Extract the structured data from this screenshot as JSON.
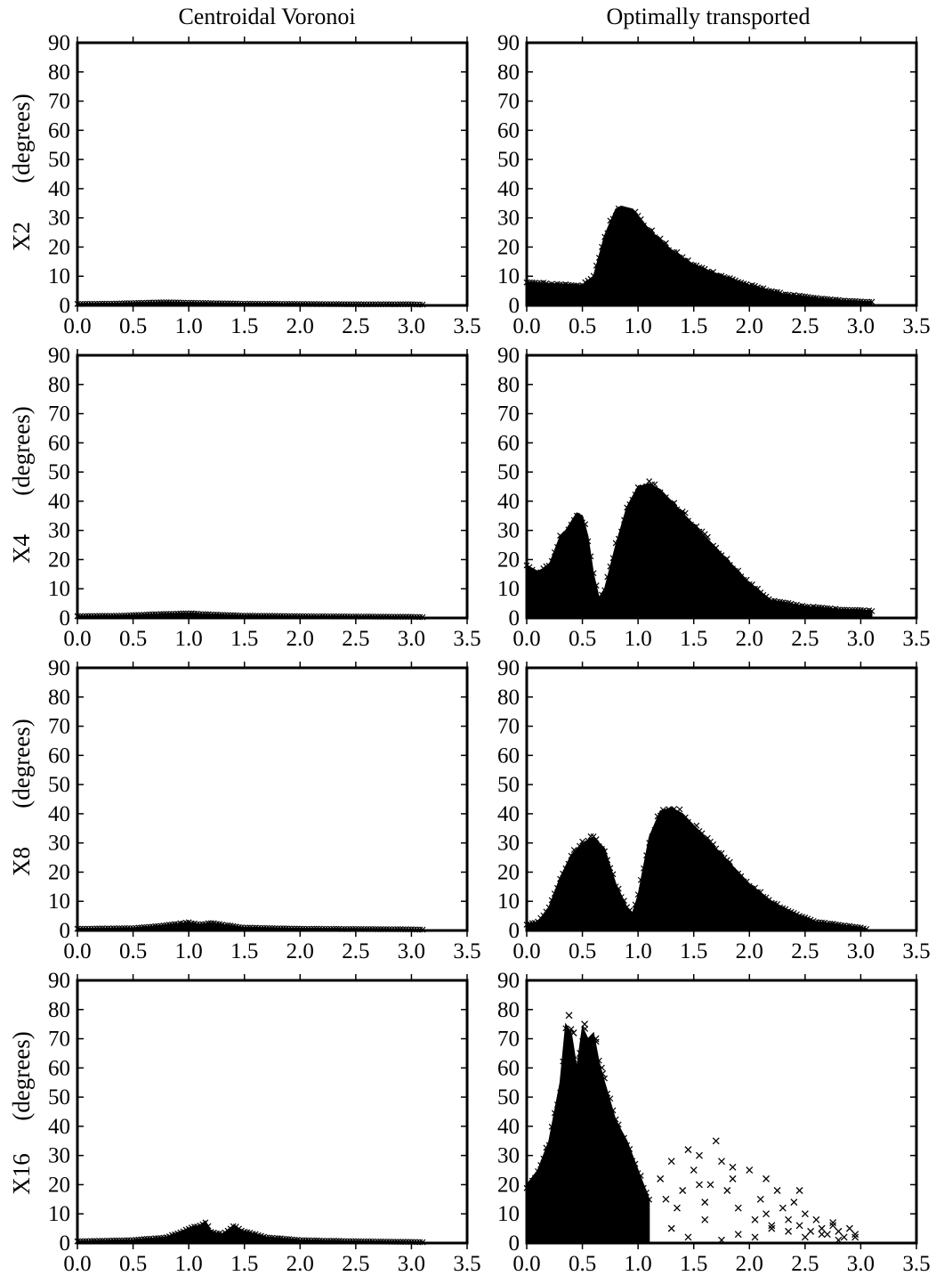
{
  "figure": {
    "column_titles": [
      "Centroidal Voronoi",
      "Optimally transported"
    ],
    "row_labels": [
      "X2",
      "X4",
      "X8",
      "X16"
    ],
    "ylabel": "(degrees)"
  },
  "chart_data": [
    {
      "type": "scatter",
      "marker": "x",
      "panel": "X2 / Centroidal Voronoi",
      "row_label": "X2",
      "column_title": "Centroidal Voronoi",
      "ylabel": "(degrees)",
      "xlim": [
        0,
        3.5
      ],
      "ylim": [
        0,
        90
      ],
      "xticks": [
        "0.0",
        "0.5",
        "1.0",
        "1.5",
        "2.0",
        "2.5",
        "3.0",
        "3.5"
      ],
      "yticks": [
        "0",
        "10",
        "20",
        "30",
        "40",
        "50",
        "60",
        "70",
        "80",
        "90"
      ],
      "envelope": {
        "x": [
          0.0,
          0.3,
          0.5,
          0.7,
          0.8,
          1.0,
          1.5,
          2.0,
          2.5,
          3.0,
          3.1
        ],
        "y": [
          0.5,
          0.6,
          0.8,
          1.0,
          1.1,
          0.9,
          0.6,
          0.5,
          0.4,
          0.4,
          0.3
        ]
      },
      "floor": 0.3,
      "density": "dense"
    },
    {
      "type": "scatter",
      "marker": "x",
      "panel": "X2 / Optimally transported",
      "row_label": "X2",
      "column_title": "Optimally transported",
      "ylabel": "(degrees)",
      "xlim": [
        0,
        3.5
      ],
      "ylim": [
        0,
        90
      ],
      "xticks": [
        "0.0",
        "0.5",
        "1.0",
        "1.5",
        "2.0",
        "2.5",
        "3.0",
        "3.5"
      ],
      "yticks": [
        "0",
        "10",
        "20",
        "30",
        "40",
        "50",
        "60",
        "70",
        "80",
        "90"
      ],
      "envelope": {
        "x": [
          0.0,
          0.2,
          0.5,
          0.6,
          0.7,
          0.8,
          0.85,
          0.95,
          1.1,
          1.3,
          1.5,
          1.7,
          2.0,
          2.3,
          2.6,
          2.9,
          3.1
        ],
        "y": [
          8,
          7.5,
          7,
          10,
          24,
          33,
          34,
          33,
          26,
          19,
          14,
          11,
          7,
          4,
          2.5,
          1.5,
          1.2
        ]
      },
      "floor": 0.0,
      "density": "dense"
    },
    {
      "type": "scatter",
      "marker": "x",
      "panel": "X4 / Centroidal Voronoi",
      "row_label": "X4",
      "column_title": "Centroidal Voronoi",
      "ylabel": "(degrees)",
      "xlim": [
        0,
        3.5
      ],
      "ylim": [
        0,
        90
      ],
      "xticks": [
        "0.0",
        "0.5",
        "1.0",
        "1.5",
        "2.0",
        "2.5",
        "3.0",
        "3.5"
      ],
      "yticks": [
        "0",
        "10",
        "20",
        "30",
        "40",
        "50",
        "60",
        "70",
        "80",
        "90"
      ],
      "envelope": {
        "x": [
          0.0,
          0.4,
          0.7,
          1.0,
          1.2,
          1.5,
          2.0,
          2.5,
          3.0,
          3.1
        ],
        "y": [
          0.6,
          0.8,
          1.3,
          1.6,
          1.2,
          0.8,
          0.6,
          0.5,
          0.4,
          0.3
        ]
      },
      "floor": 0.3,
      "density": "dense"
    },
    {
      "type": "scatter",
      "marker": "x",
      "panel": "X4 / Optimally transported",
      "row_label": "X4",
      "column_title": "Optimally transported",
      "ylabel": "(degrees)",
      "xlim": [
        0,
        3.5
      ],
      "ylim": [
        0,
        90
      ],
      "xticks": [
        "0.0",
        "0.5",
        "1.0",
        "1.5",
        "2.0",
        "2.5",
        "3.0",
        "3.5"
      ],
      "yticks": [
        "0",
        "10",
        "20",
        "30",
        "40",
        "50",
        "60",
        "70",
        "80",
        "90"
      ],
      "envelope": {
        "x": [
          0.0,
          0.1,
          0.2,
          0.3,
          0.35,
          0.45,
          0.5,
          0.55,
          0.6,
          0.65,
          0.7,
          0.8,
          0.9,
          1.0,
          1.1,
          1.2,
          1.4,
          1.6,
          1.8,
          2.0,
          2.2,
          2.5,
          2.8,
          3.1
        ],
        "y": [
          18,
          16,
          18,
          28,
          30,
          36,
          35,
          28,
          15,
          7,
          10,
          25,
          38,
          45,
          46,
          44,
          36,
          28,
          20,
          12,
          6,
          4,
          3,
          2.5
        ]
      },
      "floor": 0.0,
      "density": "dense"
    },
    {
      "type": "scatter",
      "marker": "x",
      "panel": "X8 / Centroidal Voronoi",
      "row_label": "X8",
      "column_title": "Centroidal Voronoi",
      "ylabel": "(degrees)",
      "xlim": [
        0,
        3.5
      ],
      "ylim": [
        0,
        90
      ],
      "xticks": [
        "0.0",
        "0.5",
        "1.0",
        "1.5",
        "2.0",
        "2.5",
        "3.0",
        "3.5"
      ],
      "yticks": [
        "0",
        "10",
        "20",
        "30",
        "40",
        "50",
        "60",
        "70",
        "80",
        "90"
      ],
      "envelope": {
        "x": [
          0.0,
          0.5,
          0.8,
          1.0,
          1.1,
          1.2,
          1.3,
          1.5,
          2.0,
          2.5,
          3.0,
          3.1
        ],
        "y": [
          0.6,
          0.8,
          1.8,
          2.8,
          2.0,
          2.6,
          2.0,
          1.0,
          0.6,
          0.5,
          0.4,
          0.3
        ]
      },
      "floor": 0.3,
      "density": "dense"
    },
    {
      "type": "scatter",
      "marker": "x",
      "panel": "X8 / Optimally transported",
      "row_label": "X8",
      "column_title": "Optimally transported",
      "ylabel": "(degrees)",
      "xlim": [
        0,
        3.5
      ],
      "ylim": [
        0,
        90
      ],
      "xticks": [
        "0.0",
        "0.5",
        "1.0",
        "1.5",
        "2.0",
        "2.5",
        "3.0",
        "3.5"
      ],
      "yticks": [
        "0",
        "10",
        "20",
        "30",
        "40",
        "50",
        "60",
        "70",
        "80",
        "90"
      ],
      "envelope": {
        "x": [
          0.0,
          0.1,
          0.2,
          0.3,
          0.4,
          0.5,
          0.6,
          0.7,
          0.8,
          0.9,
          0.95,
          1.0,
          1.1,
          1.2,
          1.3,
          1.4,
          1.6,
          1.8,
          2.0,
          2.2,
          2.4,
          2.6,
          2.8,
          3.0,
          3.05
        ],
        "y": [
          2,
          3,
          8,
          18,
          26,
          30,
          32,
          28,
          16,
          8,
          6,
          12,
          32,
          41,
          42,
          40,
          32,
          24,
          16,
          10,
          6,
          3,
          2,
          1,
          0.5
        ]
      },
      "floor": 0.0,
      "density": "dense"
    },
    {
      "type": "scatter",
      "marker": "x",
      "panel": "X16 / Centroidal Voronoi",
      "row_label": "X16",
      "column_title": "Centroidal Voronoi",
      "ylabel": "(degrees)",
      "xlim": [
        0,
        3.5
      ],
      "ylim": [
        0,
        90
      ],
      "xticks": [
        "0.0",
        "0.5",
        "1.0",
        "1.5",
        "2.0",
        "2.5",
        "3.0",
        "3.5"
      ],
      "yticks": [
        "0",
        "10",
        "20",
        "30",
        "40",
        "50",
        "60",
        "70",
        "80",
        "90"
      ],
      "envelope": {
        "x": [
          0.0,
          0.5,
          0.8,
          1.0,
          1.1,
          1.15,
          1.2,
          1.3,
          1.4,
          1.5,
          1.7,
          2.0,
          2.5,
          3.0,
          3.1
        ],
        "y": [
          0.6,
          1.0,
          2.0,
          5.0,
          6.0,
          7.5,
          4.0,
          3.0,
          6.0,
          4.0,
          2.0,
          1.0,
          0.6,
          0.4,
          0.3
        ]
      },
      "floor": 0.3,
      "density": "dense"
    },
    {
      "type": "scatter",
      "marker": "x",
      "panel": "X16 / Optimally transported",
      "row_label": "X16",
      "column_title": "Optimally transported",
      "ylabel": "(degrees)",
      "xlim": [
        0,
        3.5
      ],
      "ylim": [
        0,
        90
      ],
      "xticks": [
        "0.0",
        "0.5",
        "1.0",
        "1.5",
        "2.0",
        "2.5",
        "3.0",
        "3.5"
      ],
      "yticks": [
        "0",
        "10",
        "20",
        "30",
        "40",
        "50",
        "60",
        "70",
        "80",
        "90"
      ],
      "envelope": {
        "x": [
          0.0,
          0.1,
          0.2,
          0.3,
          0.35,
          0.4,
          0.45,
          0.5,
          0.55,
          0.6,
          0.65,
          0.7,
          0.8,
          0.9,
          1.0,
          1.1
        ],
        "y": [
          20,
          25,
          35,
          55,
          75,
          72,
          60,
          74,
          70,
          72,
          62,
          55,
          42,
          35,
          25,
          15
        ]
      },
      "floor": 0.0,
      "density": "dense",
      "scattered": {
        "x": [
          0.38,
          0.42,
          0.48,
          0.52,
          0.58,
          0.62,
          0.68,
          1.2,
          1.3,
          1.35,
          1.4,
          1.45,
          1.5,
          1.55,
          1.6,
          1.65,
          1.7,
          1.75,
          1.8,
          1.85,
          1.9,
          2.0,
          2.05,
          2.1,
          2.15,
          2.2,
          2.25,
          2.3,
          2.35,
          2.4,
          2.45,
          2.5,
          2.55,
          2.6,
          2.65,
          2.7,
          2.75,
          2.8,
          2.85,
          2.9,
          2.95,
          1.3,
          1.45,
          1.6,
          1.75,
          1.9,
          2.05,
          2.2,
          2.35,
          2.5,
          2.65,
          2.8,
          2.95,
          1.25,
          1.55,
          1.85,
          2.15,
          2.45,
          2.75
        ],
        "y": [
          78,
          72,
          65,
          75,
          68,
          70,
          58,
          22,
          28,
          12,
          18,
          32,
          25,
          30,
          14,
          20,
          35,
          28,
          18,
          22,
          12,
          25,
          8,
          15,
          10,
          5,
          18,
          12,
          8,
          14,
          6,
          10,
          4,
          8,
          5,
          3,
          6,
          4,
          2,
          5,
          3,
          5,
          2,
          8,
          1,
          3,
          2,
          6,
          4,
          2,
          3,
          1,
          2,
          15,
          20,
          26,
          22,
          18,
          7
        ]
      }
    }
  ]
}
